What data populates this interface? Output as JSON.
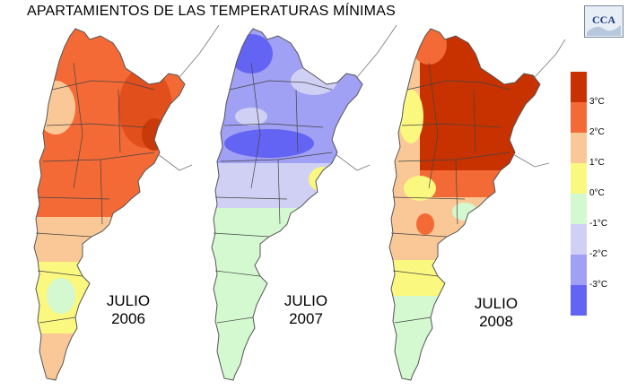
{
  "title": "APARTAMIENTOS DE LAS TEMPERATURAS MÍNIMAS",
  "logo_text": "CCA",
  "maps": [
    {
      "line1": "JULIO",
      "line2": "2006"
    },
    {
      "line1": "JULIO",
      "line2": "2007"
    },
    {
      "line1": "JULIO",
      "line2": "2008"
    }
  ],
  "legend": {
    "labels": [
      "3°C",
      "2°C",
      "1°C",
      "0°C",
      "-1°C",
      "-2°C",
      "-3°C"
    ],
    "colors": [
      "#c83200",
      "#f46a36",
      "#fac896",
      "#faf87e",
      "#d4f8d0",
      "#d0d0f4",
      "#a0a0f4",
      "#6464f4"
    ]
  }
}
